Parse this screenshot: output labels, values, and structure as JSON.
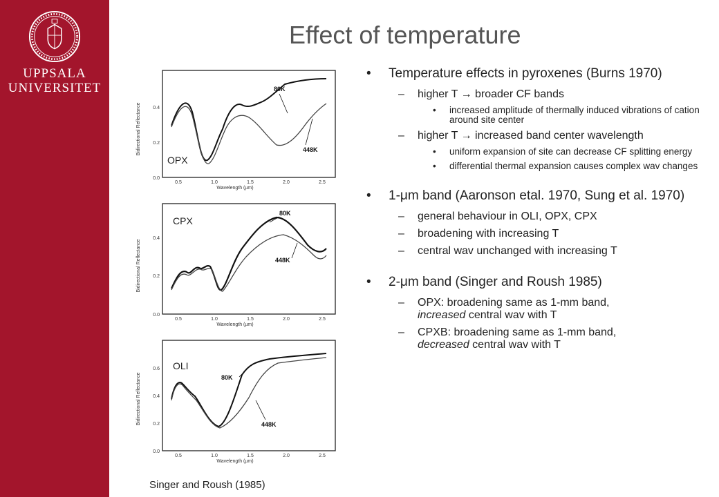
{
  "sidebar": {
    "logo_icon": "uppsala-university-seal-icon",
    "name_line1": "UPPSALA",
    "name_line2": "UNIVERSITET",
    "color": "#a3152c"
  },
  "title": "Effect of temperature",
  "figures": {
    "caption": "Singer and Roush (1985)",
    "panels": [
      {
        "label": "OPX",
        "ylabel": "Bidirectional Reflectance",
        "xlabel": "Wavelength (µm)",
        "yticks": [
          "0.0",
          "0.2",
          "0.4"
        ],
        "xticks": [
          "0.5",
          "1.0",
          "1.5",
          "2.0",
          "2.5"
        ],
        "curve_labels": [
          "80K",
          "448K"
        ]
      },
      {
        "label": "CPX",
        "ylabel": "Bidirectional Reflectance",
        "xlabel": "Wavelength (µm)",
        "yticks": [
          "0.0",
          "0.2",
          "0.4"
        ],
        "xticks": [
          "0.5",
          "1.0",
          "1.5",
          "2.0",
          "2.5"
        ],
        "curve_labels": [
          "80K",
          "448K"
        ]
      },
      {
        "label": "OLI",
        "ylabel": "Bidirectional Reflectance",
        "xlabel": "Wavelength (µm)",
        "yticks": [
          "0.0",
          "0.2",
          "0.4",
          "0.6"
        ],
        "xticks": [
          "0.5",
          "1.0",
          "1.5",
          "2.0",
          "2.5"
        ],
        "curve_labels": [
          "80K",
          "448K"
        ]
      }
    ]
  },
  "content": {
    "b1": "Temperature effects in pyroxenes (Burns 1970)",
    "b1_s1": "higher T  →  broader CF bands",
    "b1_s1_d1": "increased amplitude of thermally induced vibrations of cation around site center",
    "b1_s2": "higher T  →  increased band center wavelength",
    "b1_s2_d1": "uniform expansion of site can decrease CF splitting energy",
    "b1_s2_d2": "differential thermal expansion causes complex wav changes",
    "b2": "1-μm band (Aaronson etal. 1970, Sung et al. 1970)",
    "b2_s1": "general behaviour in OLI, OPX, CPX",
    "b2_s2": "broadening with increasing T",
    "b2_s3": "central wav unchanged with increasing T",
    "b3": "2-μm band (Singer and Roush 1985)",
    "b3_s1_a": "OPX: broadening same as 1-mm band,",
    "b3_s1_em": "increased",
    "b3_s1_b": " central wav with T",
    "b3_s2_a": "CPXB: broadening same as 1-mm band,",
    "b3_s2_em": "decreased",
    "b3_s2_b": " central wav with T"
  }
}
